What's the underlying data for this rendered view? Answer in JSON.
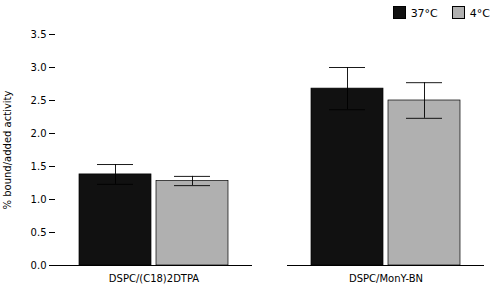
{
  "chart_data": {
    "type": "bar",
    "categories": [
      "DSPC/(C18)2DTPA",
      "DSPC/MonY-BN"
    ],
    "series": [
      {
        "name": "37°C",
        "color": "#111111",
        "values": [
          1.38,
          2.68
        ],
        "errors": [
          0.15,
          0.32
        ]
      },
      {
        "name": "4°C",
        "color": "#b0b0b0",
        "values": [
          1.28,
          2.5
        ],
        "errors": [
          0.07,
          0.27
        ]
      }
    ],
    "ylabel": "% bound/added activity",
    "ylim": [
      0,
      3.5
    ],
    "yticks": [
      {
        "value": 0,
        "label": "0.0"
      },
      0.5,
      {
        "value": 1,
        "label": "1.0"
      },
      1.5,
      {
        "value": 2,
        "label": "2.0"
      },
      2.5,
      {
        "value": 3,
        "label": "3.0"
      },
      3.5
    ],
    "grid": false,
    "legend": "upper right"
  }
}
